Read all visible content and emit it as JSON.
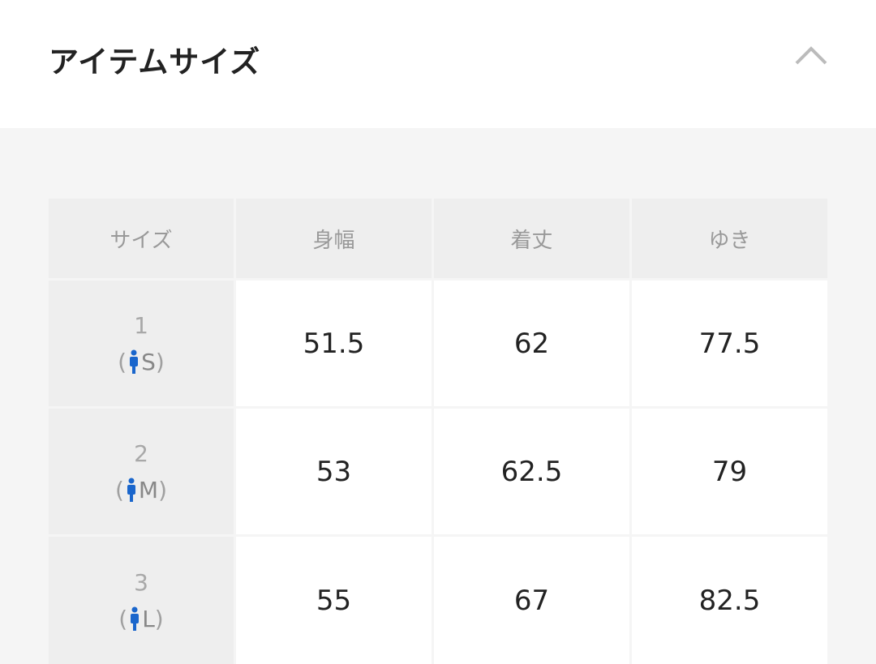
{
  "header": {
    "title": "アイテムサイズ",
    "collapse_icon": "chevron-up-icon"
  },
  "table": {
    "headers": [
      "サイズ",
      "身幅",
      "着丈",
      "ゆき"
    ],
    "rows": [
      {
        "size": "1",
        "label": "S",
        "values": [
          "51.5",
          "62",
          "77.5"
        ]
      },
      {
        "size": "2",
        "label": "M",
        "values": [
          "53",
          "62.5",
          "79"
        ]
      },
      {
        "size": "3",
        "label": "L",
        "values": [
          "55",
          "67",
          "82.5"
        ]
      }
    ],
    "open_paren": "(",
    "close_paren": ")"
  },
  "colors": {
    "person_icon": "#1a66cc"
  }
}
